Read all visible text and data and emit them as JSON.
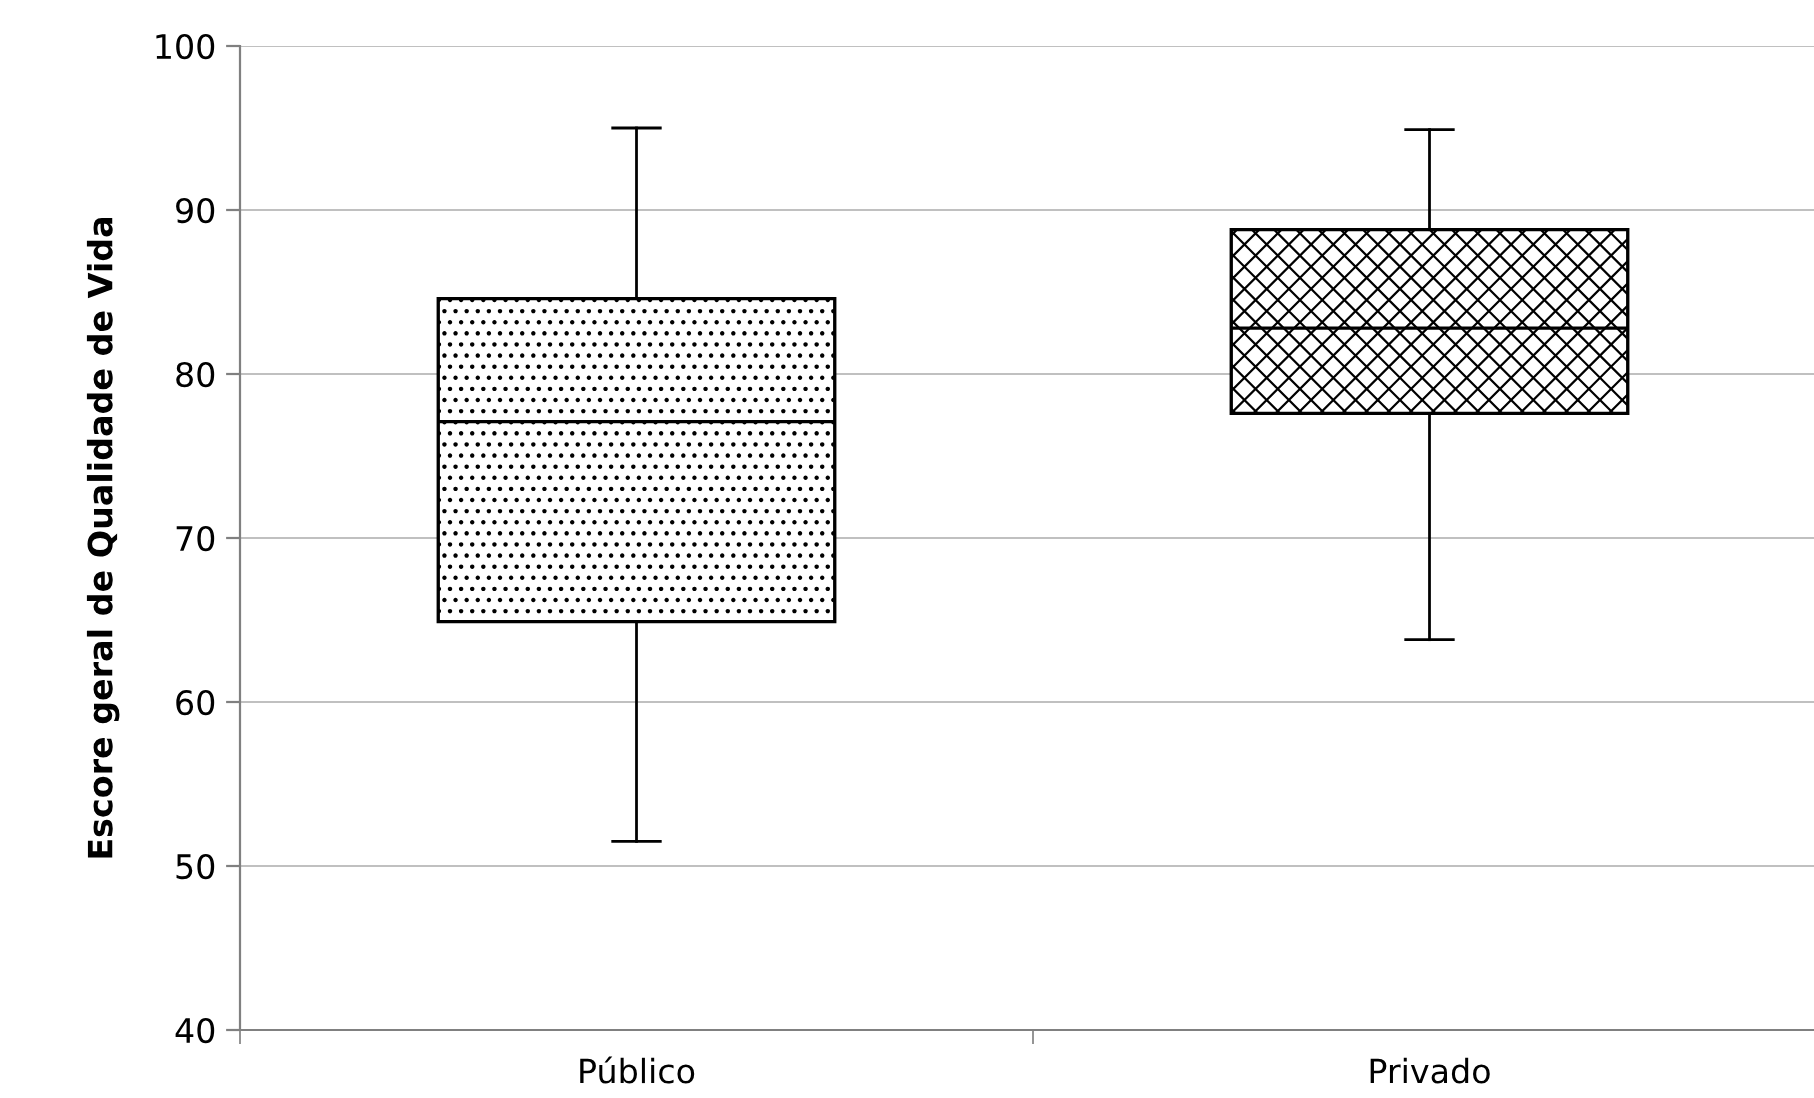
{
  "chart_data": {
    "type": "box",
    "ylabel": "Escore geral de Qualidade de Vida",
    "categories": [
      "Público",
      "Privado"
    ],
    "boxes": [
      {
        "low": 51.5,
        "q1": 64.9,
        "median": 77.1,
        "q3": 84.6,
        "high": 95
      },
      {
        "low": 63.8,
        "q1": 77.6,
        "median": 82.8,
        "q3": 88.8,
        "high": 94.9
      }
    ],
    "ylim": [
      40,
      100
    ],
    "yticks": [
      40,
      50,
      60,
      70,
      80,
      90,
      100
    ],
    "grid": "y"
  }
}
